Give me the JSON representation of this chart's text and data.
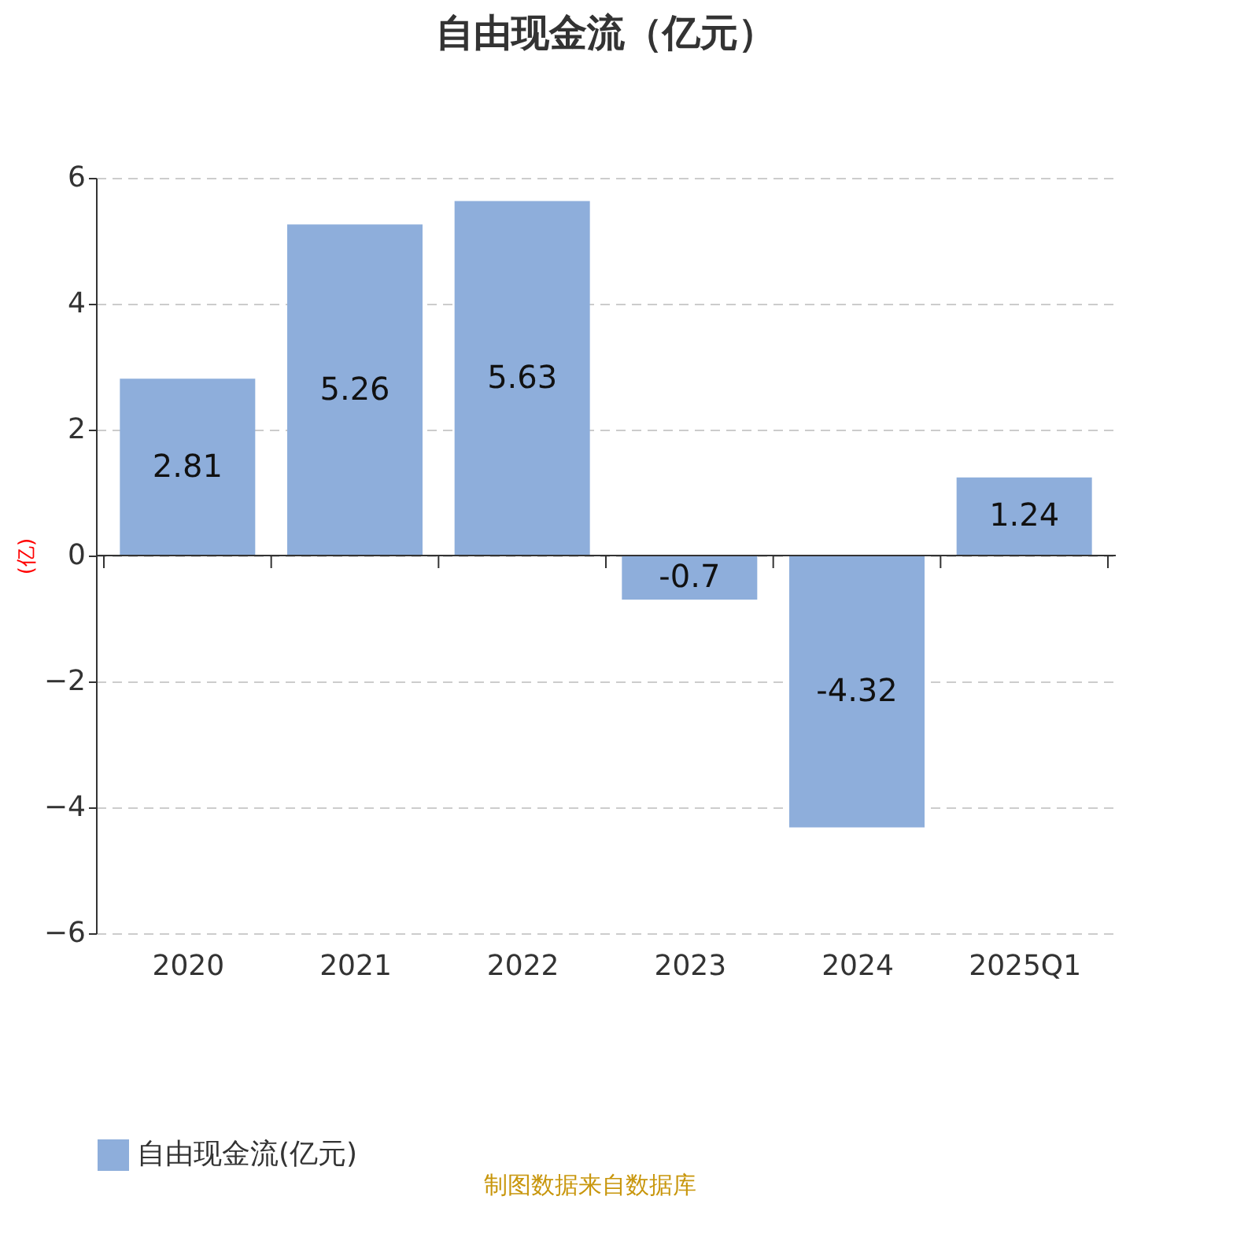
{
  "chart_data": {
    "type": "bar",
    "title": "自由现金流（亿元）",
    "ylabel": "(亿)",
    "categories": [
      "2020",
      "2021",
      "2022",
      "2023",
      "2024",
      "2025Q1"
    ],
    "series": [
      {
        "name": "自由现金流(亿元)",
        "color": "#8eaedb",
        "values": [
          2.81,
          5.26,
          5.63,
          -0.7,
          -4.32,
          1.24
        ]
      }
    ],
    "ylim": [
      -6,
      6
    ],
    "yticks": [
      -6,
      -4,
      -2,
      0,
      2,
      4,
      6
    ],
    "grid": "y",
    "data_labels": true,
    "legend": "bottom",
    "annotations": [
      "制图数据来自数据库"
    ]
  }
}
